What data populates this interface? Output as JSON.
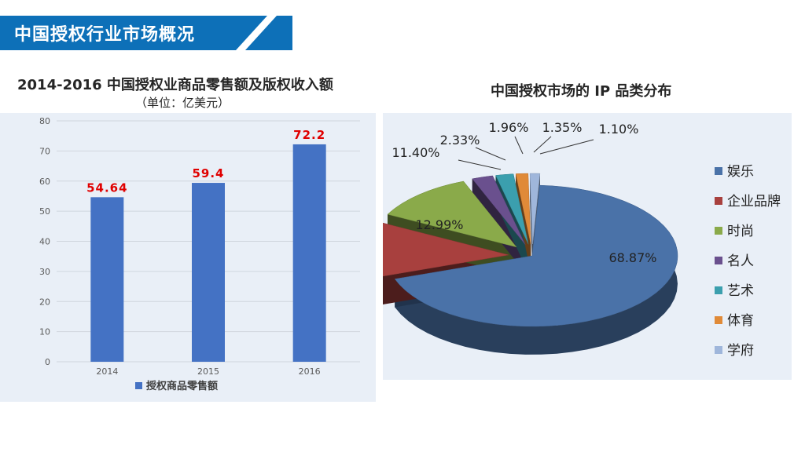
{
  "header": {
    "title": "中国授权行业市场概况"
  },
  "colors": {
    "banner": "#0d70b8",
    "bar": "#4472c4",
    "bar_label": "#e00000",
    "panel_bg": "#e9eff7",
    "pie": [
      "#4a72a8",
      "#a8403e",
      "#8aaa4a",
      "#6a508e",
      "#3b9fae",
      "#e08a38",
      "#9fb6db"
    ]
  },
  "chart_data": [
    {
      "type": "bar",
      "title": "2014-2016 中国授权业商品零售额及版权收入额",
      "subtitle": "（单位：亿美元）",
      "categories": [
        "2014",
        "2015",
        "2016"
      ],
      "series": [
        {
          "name": "授权商品零售额",
          "values": [
            54.64,
            59.4,
            72.2
          ]
        }
      ],
      "data_labels": [
        "54.64",
        "59.4",
        "72.2"
      ],
      "ylim": [
        0,
        80
      ],
      "yticks": [
        "0",
        "10",
        "20",
        "30",
        "40",
        "50",
        "60",
        "70",
        "80"
      ],
      "grid": true,
      "legend": "bottom"
    },
    {
      "type": "pie",
      "title": "中国授权市场的 IP 品类分布",
      "labels": [
        "娱乐",
        "企业品牌",
        "时尚",
        "名人",
        "艺术",
        "体育",
        "学府"
      ],
      "values": [
        68.87,
        12.99,
        11.4,
        2.33,
        1.96,
        1.35,
        1.1
      ],
      "data_labels": [
        "68.87%",
        "12.99%",
        "11.40%",
        "2.33%",
        "1.96%",
        "1.35%",
        "1.10%"
      ],
      "legend": "right"
    }
  ]
}
